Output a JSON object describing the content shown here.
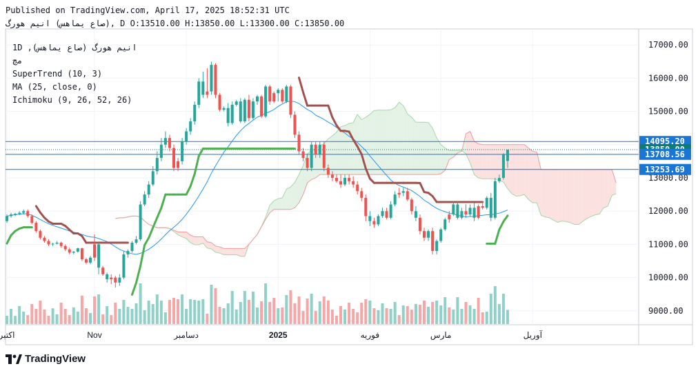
{
  "header": {
    "published": "Published on TradingView.com, April 17, 2025 18:52:31 UTC",
    "ohlc": "صاع يماهس) انيم هورگ), D O:13510.00 H:13850.00 L:13300.00 C:13850.00"
  },
  "legend": {
    "line1": "1D ,(صاع يماهس) انيم هورگ",
    "line2": "مچ",
    "supertrend": "SuperTrend (10, 3)",
    "ma": "MA (25, close, 0)",
    "ichimoku": "Ichimoku (9, 26, 52, 26)"
  },
  "brand": {
    "name": "TradingView"
  },
  "colors": {
    "up": "#26a69a",
    "down": "#ef5350",
    "up_vol": "#8fd1c8",
    "down_vol": "#f4a7a6",
    "supertrend_up": "#4caf50",
    "supertrend_down": "#a0524e",
    "ma": "#2196f3",
    "cloud_bull": "#e3f2e5",
    "cloud_bear": "#fbe1df",
    "hline": "#1976d2"
  },
  "chart_data": {
    "type": "candlestick",
    "y_ticks": [
      "17000.00",
      "16000.00",
      "15000.00",
      "14000.00",
      "13000.00",
      "12000.00",
      "11000.00",
      "10000.00",
      "9000.00"
    ],
    "ylim": [
      8700,
      17400
    ],
    "x_labels": [
      {
        "label": "اکتبر",
        "i": 0
      },
      {
        "label": "Nov",
        "i": 21
      },
      {
        "label": "دسامبر",
        "i": 43
      },
      {
        "label": "2025",
        "i": 65
      },
      {
        "label": "فوریه",
        "i": 87
      },
      {
        "label": "مارس",
        "i": 104
      },
      {
        "label": "آوریل",
        "i": 126
      }
    ],
    "price_labels": [
      {
        "text": "14095.20",
        "value": 14095.2,
        "color": "#1976d2"
      },
      {
        "text": "13850.00",
        "value": 13850,
        "color": "#0b7d71"
      },
      {
        "text": "13708.56",
        "value": 13708.56,
        "color": "#1976d2"
      },
      {
        "text": "13253.69",
        "value": 13253.69,
        "color": "#1976d2"
      }
    ],
    "h_lines": [
      14095.2,
      13708.56,
      13253.69
    ],
    "dotted_line": 13850,
    "candles": [
      [
        1,
        11700,
        11900,
        11650,
        11850
      ],
      [
        1,
        11850,
        11950,
        11800,
        11900
      ],
      [
        1,
        11900,
        11950,
        11850,
        11920
      ],
      [
        1,
        11920,
        12000,
        11880,
        11950
      ],
      [
        1,
        11950,
        12050,
        11900,
        12000
      ],
      [
        0,
        12000,
        12050,
        11800,
        11850
      ],
      [
        0,
        11850,
        11900,
        11600,
        11650
      ],
      [
        0,
        11650,
        11700,
        11350,
        11400
      ],
      [
        0,
        11400,
        11450,
        11150,
        11200
      ],
      [
        0,
        11200,
        11250,
        11050,
        11100
      ],
      [
        0,
        11100,
        11150,
        10950,
        11000
      ],
      [
        1,
        11000,
        11050,
        10950,
        11020
      ],
      [
        1,
        11020,
        11100,
        11000,
        11050
      ],
      [
        0,
        11050,
        11080,
        10900,
        10950
      ],
      [
        0,
        10950,
        11000,
        10800,
        10850
      ],
      [
        0,
        10850,
        10900,
        10700,
        10750
      ],
      [
        1,
        10750,
        10800,
        10700,
        10780
      ],
      [
        1,
        10780,
        10900,
        10750,
        10880
      ],
      [
        0,
        10880,
        10900,
        10500,
        10550
      ],
      [
        0,
        10550,
        10600,
        10400,
        10450
      ],
      [
        1,
        10450,
        10650,
        10400,
        10600
      ],
      [
        0,
        10600,
        11300,
        10500,
        11000
      ],
      [
        1,
        11000,
        11050,
        10100,
        10300
      ],
      [
        0,
        10300,
        10350,
        10050,
        10100
      ],
      [
        1,
        10100,
        10150,
        9850,
        9950
      ],
      [
        0,
        9950,
        10100,
        9800,
        10000
      ],
      [
        0,
        10000,
        10050,
        9700,
        9850
      ],
      [
        1,
        9850,
        10100,
        9750,
        10000
      ],
      [
        1,
        10000,
        10800,
        9950,
        10700
      ],
      [
        1,
        10700,
        10850,
        10600,
        10800
      ],
      [
        1,
        10800,
        11100,
        10750,
        11050
      ],
      [
        1,
        11050,
        11250,
        11000,
        11150
      ],
      [
        1,
        11150,
        12300,
        11100,
        12200
      ],
      [
        1,
        12200,
        12600,
        12150,
        12500
      ],
      [
        1,
        12500,
        12900,
        12400,
        12800
      ],
      [
        1,
        12800,
        13350,
        12750,
        13200
      ],
      [
        1,
        13200,
        13800,
        13100,
        13600
      ],
      [
        1,
        13600,
        14200,
        13500,
        14000
      ],
      [
        1,
        14000,
        14400,
        13900,
        14200
      ],
      [
        0,
        14200,
        14300,
        13800,
        13900
      ],
      [
        0,
        13900,
        14000,
        13200,
        13300
      ],
      [
        0,
        13300,
        13600,
        13200,
        13500
      ],
      [
        1,
        13500,
        14200,
        13400,
        14100
      ],
      [
        1,
        14100,
        14500,
        14000,
        14400
      ],
      [
        1,
        14400,
        14800,
        14300,
        14700
      ],
      [
        1,
        14700,
        15300,
        14600,
        15200
      ],
      [
        1,
        15200,
        16000,
        15100,
        15900
      ],
      [
        1,
        15900,
        16200,
        15400,
        15500
      ],
      [
        0,
        15500,
        16300,
        15400,
        15600
      ],
      [
        1,
        15600,
        16500,
        15500,
        16400
      ],
      [
        0,
        16400,
        16450,
        15400,
        15500
      ],
      [
        0,
        15500,
        15550,
        15000,
        15050
      ],
      [
        1,
        15050,
        15150,
        15000,
        15100
      ],
      [
        1,
        15100,
        15250,
        14550,
        14650
      ],
      [
        1,
        14650,
        15300,
        14600,
        15200
      ],
      [
        1,
        15200,
        15350,
        15150,
        15300
      ],
      [
        1,
        15300,
        15400,
        14650,
        14700
      ],
      [
        1,
        14700,
        15400,
        14650,
        15350
      ],
      [
        0,
        15350,
        15500,
        14700,
        14800
      ],
      [
        1,
        14800,
        15400,
        14750,
        15300
      ],
      [
        1,
        15300,
        15500,
        15200,
        15450
      ],
      [
        0,
        15450,
        15500,
        14800,
        14850
      ],
      [
        1,
        14850,
        15800,
        14800,
        15750
      ],
      [
        0,
        15750,
        15800,
        15200,
        15300
      ],
      [
        0,
        15300,
        15600,
        15250,
        15550
      ],
      [
        1,
        15550,
        15700,
        15300,
        15650
      ],
      [
        0,
        15650,
        15700,
        15250,
        15300
      ],
      [
        1,
        15300,
        15800,
        15250,
        15750
      ],
      [
        0,
        15750,
        15800,
        14800,
        14900
      ],
      [
        0,
        14900,
        15000,
        14200,
        14300
      ],
      [
        0,
        14300,
        14400,
        13700,
        13800
      ],
      [
        0,
        13800,
        13900,
        13500,
        13600
      ],
      [
        0,
        13600,
        13700,
        13200,
        13300
      ],
      [
        1,
        13300,
        14100,
        13200,
        14000
      ],
      [
        0,
        14000,
        14100,
        13600,
        13700
      ],
      [
        1,
        13700,
        14100,
        13600,
        14000
      ],
      [
        0,
        14000,
        14100,
        13200,
        13300
      ],
      [
        0,
        13300,
        13400,
        13000,
        13100
      ],
      [
        0,
        13100,
        13200,
        12900,
        13000
      ],
      [
        0,
        13000,
        13100,
        12850,
        12900
      ],
      [
        0,
        12900,
        13100,
        12700,
        12800
      ],
      [
        1,
        12800,
        13100,
        12750,
        13000
      ],
      [
        0,
        13000,
        13100,
        12800,
        12900
      ],
      [
        0,
        12900,
        13050,
        12700,
        12800
      ],
      [
        0,
        12800,
        12900,
        12500,
        12600
      ],
      [
        0,
        12600,
        12700,
        12300,
        12400
      ],
      [
        0,
        12400,
        12500,
        11700,
        11850
      ],
      [
        1,
        11850,
        12000,
        11550,
        11700
      ],
      [
        0,
        11700,
        11800,
        11500,
        11600
      ],
      [
        1,
        11600,
        11900,
        11550,
        11850
      ],
      [
        1,
        11850,
        12100,
        11800,
        12000
      ],
      [
        0,
        12000,
        12100,
        11750,
        11800
      ],
      [
        1,
        11800,
        12300,
        11750,
        12200
      ],
      [
        1,
        12200,
        12600,
        12150,
        12500
      ],
      [
        0,
        12500,
        12700,
        12400,
        12550
      ],
      [
        1,
        12550,
        12700,
        12450,
        12600
      ],
      [
        0,
        12600,
        12700,
        12300,
        12350
      ],
      [
        0,
        12350,
        12400,
        11900,
        12000
      ],
      [
        1,
        12000,
        12150,
        11700,
        11800
      ],
      [
        0,
        11800,
        11900,
        11300,
        11400
      ],
      [
        0,
        11400,
        11500,
        11100,
        11200
      ],
      [
        1,
        11200,
        11450,
        11100,
        11400
      ],
      [
        0,
        11400,
        11500,
        10700,
        10800
      ],
      [
        1,
        10800,
        11150,
        10700,
        11100
      ],
      [
        1,
        11100,
        11500,
        11050,
        11450
      ],
      [
        1,
        11450,
        11800,
        11400,
        11750
      ],
      [
        0,
        11750,
        12000,
        11650,
        11900
      ],
      [
        1,
        11900,
        12300,
        11850,
        12200
      ],
      [
        1,
        12200,
        12300,
        11750,
        11800
      ],
      [
        1,
        11800,
        12100,
        11750,
        12000
      ],
      [
        0,
        12000,
        12200,
        11800,
        11900
      ],
      [
        1,
        11900,
        12200,
        11850,
        12100
      ],
      [
        1,
        12100,
        12250,
        11700,
        11800
      ],
      [
        0,
        11800,
        12200,
        11750,
        12150
      ],
      [
        0,
        12150,
        12300,
        12050,
        12100
      ],
      [
        1,
        12100,
        12450,
        12050,
        12400
      ],
      [
        1,
        12400,
        12550,
        11700,
        11800
      ],
      [
        1,
        11800,
        13000,
        11750,
        12900
      ],
      [
        1,
        12900,
        13100,
        12850,
        13000
      ],
      [
        1,
        13000,
        13750,
        12950,
        13700
      ],
      [
        1,
        13510,
        13850,
        13300,
        13850
      ]
    ]
  }
}
